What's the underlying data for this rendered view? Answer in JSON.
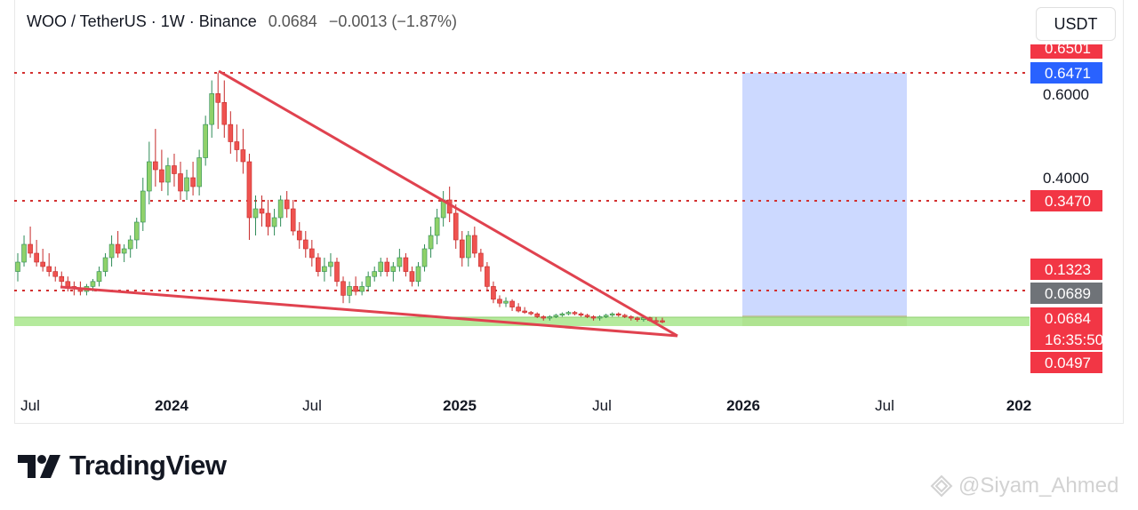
{
  "header": {
    "symbol": "WOO / TetherUS · 1W · Binance",
    "price": "0.0684",
    "change": "−0.0013 (−1.87%)"
  },
  "currency_button": "USDT",
  "brand": {
    "name": "TradingView",
    "logo_icon": "tradingview-logo-icon"
  },
  "watermark": {
    "text": "@Siyam_Ahmed",
    "icon": "tiktok-style-icon"
  },
  "colors": {
    "up": "#26a69a",
    "up_fill": "#8fd16a",
    "down": "#ef5350",
    "trendline": "#e0424f",
    "dotted": "#d32f2f",
    "zone": "#ccd9ff",
    "support_band": "#a8e68c",
    "label_red": "#f23645",
    "label_blue": "#2962ff",
    "label_gray": "#6f7378"
  },
  "chart_data": {
    "type": "candlestick",
    "interval": "1W",
    "y_axis_ticks": [
      "0.6000",
      "0.4000"
    ],
    "x_axis_ticks": [
      "Jul",
      "2024",
      "Jul",
      "2025",
      "Jul",
      "2026",
      "Jul",
      "202"
    ],
    "price_labels": [
      {
        "text": "0.6501",
        "kind": "red",
        "value": 0.6501
      },
      {
        "text": "0.6471",
        "kind": "blue",
        "value": 0.6471
      },
      {
        "text": "0.3470",
        "kind": "red",
        "value": 0.347
      },
      {
        "text": "0.1323",
        "kind": "red",
        "value": 0.1323
      },
      {
        "text": "0.0689",
        "kind": "gray",
        "value": 0.0689
      },
      {
        "text": "0.0684",
        "kind": "red",
        "value": 0.0684
      },
      {
        "text": "16:35:50",
        "kind": "red",
        "value": 0.0684
      },
      {
        "text": "0.0497",
        "kind": "red",
        "value": 0.0497
      }
    ],
    "horizontal_levels": [
      0.6471,
      0.347,
      0.1323
    ],
    "support_band": [
      0.062,
      0.072
    ],
    "projection_zone": {
      "x_start": "2026-03",
      "x_end": "2026-08",
      "y_low": 0.068,
      "y_high": 0.6471
    },
    "trendlines": [
      {
        "from": {
          "x": "2024-03",
          "y": 0.6471
        },
        "to": {
          "x": "2025-10",
          "y": 0.0497
        }
      },
      {
        "from": {
          "x": "2023-09",
          "y": 0.1323
        },
        "to": {
          "x": "2025-10",
          "y": 0.0497
        }
      }
    ],
    "candles": [
      {
        "o": 0.19,
        "h": 0.23,
        "l": 0.17,
        "c": 0.21
      },
      {
        "o": 0.21,
        "h": 0.27,
        "l": 0.2,
        "c": 0.25
      },
      {
        "o": 0.25,
        "h": 0.29,
        "l": 0.22,
        "c": 0.23
      },
      {
        "o": 0.23,
        "h": 0.26,
        "l": 0.2,
        "c": 0.21
      },
      {
        "o": 0.21,
        "h": 0.24,
        "l": 0.19,
        "c": 0.2
      },
      {
        "o": 0.2,
        "h": 0.23,
        "l": 0.18,
        "c": 0.19
      },
      {
        "o": 0.19,
        "h": 0.2,
        "l": 0.17,
        "c": 0.18
      },
      {
        "o": 0.18,
        "h": 0.19,
        "l": 0.16,
        "c": 0.17
      },
      {
        "o": 0.17,
        "h": 0.18,
        "l": 0.15,
        "c": 0.16
      },
      {
        "o": 0.16,
        "h": 0.17,
        "l": 0.14,
        "c": 0.155
      },
      {
        "o": 0.155,
        "h": 0.17,
        "l": 0.14,
        "c": 0.15
      },
      {
        "o": 0.15,
        "h": 0.165,
        "l": 0.14,
        "c": 0.16
      },
      {
        "o": 0.16,
        "h": 0.175,
        "l": 0.15,
        "c": 0.17
      },
      {
        "o": 0.17,
        "h": 0.2,
        "l": 0.16,
        "c": 0.19
      },
      {
        "o": 0.19,
        "h": 0.23,
        "l": 0.18,
        "c": 0.22
      },
      {
        "o": 0.22,
        "h": 0.27,
        "l": 0.2,
        "c": 0.25
      },
      {
        "o": 0.25,
        "h": 0.28,
        "l": 0.22,
        "c": 0.23
      },
      {
        "o": 0.23,
        "h": 0.25,
        "l": 0.21,
        "c": 0.24
      },
      {
        "o": 0.24,
        "h": 0.27,
        "l": 0.22,
        "c": 0.26
      },
      {
        "o": 0.26,
        "h": 0.31,
        "l": 0.24,
        "c": 0.3
      },
      {
        "o": 0.3,
        "h": 0.4,
        "l": 0.28,
        "c": 0.37
      },
      {
        "o": 0.37,
        "h": 0.49,
        "l": 0.34,
        "c": 0.44
      },
      {
        "o": 0.44,
        "h": 0.52,
        "l": 0.38,
        "c": 0.42
      },
      {
        "o": 0.42,
        "h": 0.47,
        "l": 0.37,
        "c": 0.39
      },
      {
        "o": 0.39,
        "h": 0.45,
        "l": 0.36,
        "c": 0.43
      },
      {
        "o": 0.43,
        "h": 0.46,
        "l": 0.38,
        "c": 0.41
      },
      {
        "o": 0.41,
        "h": 0.44,
        "l": 0.35,
        "c": 0.37
      },
      {
        "o": 0.37,
        "h": 0.42,
        "l": 0.35,
        "c": 0.4
      },
      {
        "o": 0.4,
        "h": 0.44,
        "l": 0.36,
        "c": 0.38
      },
      {
        "o": 0.38,
        "h": 0.47,
        "l": 0.36,
        "c": 0.45
      },
      {
        "o": 0.45,
        "h": 0.55,
        "l": 0.43,
        "c": 0.53
      },
      {
        "o": 0.53,
        "h": 0.63,
        "l": 0.5,
        "c": 0.6
      },
      {
        "o": 0.6,
        "h": 0.6471,
        "l": 0.52,
        "c": 0.58
      },
      {
        "o": 0.58,
        "h": 0.63,
        "l": 0.5,
        "c": 0.53
      },
      {
        "o": 0.53,
        "h": 0.56,
        "l": 0.46,
        "c": 0.49
      },
      {
        "o": 0.49,
        "h": 0.53,
        "l": 0.44,
        "c": 0.47
      },
      {
        "o": 0.47,
        "h": 0.52,
        "l": 0.41,
        "c": 0.44
      },
      {
        "o": 0.44,
        "h": 0.46,
        "l": 0.26,
        "c": 0.31
      },
      {
        "o": 0.31,
        "h": 0.36,
        "l": 0.27,
        "c": 0.33
      },
      {
        "o": 0.33,
        "h": 0.36,
        "l": 0.29,
        "c": 0.32
      },
      {
        "o": 0.32,
        "h": 0.35,
        "l": 0.27,
        "c": 0.29
      },
      {
        "o": 0.29,
        "h": 0.33,
        "l": 0.27,
        "c": 0.31
      },
      {
        "o": 0.31,
        "h": 0.36,
        "l": 0.29,
        "c": 0.35
      },
      {
        "o": 0.35,
        "h": 0.37,
        "l": 0.31,
        "c": 0.33
      },
      {
        "o": 0.33,
        "h": 0.35,
        "l": 0.27,
        "c": 0.28
      },
      {
        "o": 0.28,
        "h": 0.3,
        "l": 0.24,
        "c": 0.26
      },
      {
        "o": 0.26,
        "h": 0.28,
        "l": 0.22,
        "c": 0.24
      },
      {
        "o": 0.24,
        "h": 0.26,
        "l": 0.2,
        "c": 0.22
      },
      {
        "o": 0.22,
        "h": 0.23,
        "l": 0.18,
        "c": 0.19
      },
      {
        "o": 0.19,
        "h": 0.22,
        "l": 0.17,
        "c": 0.2
      },
      {
        "o": 0.2,
        "h": 0.23,
        "l": 0.18,
        "c": 0.21
      },
      {
        "o": 0.21,
        "h": 0.22,
        "l": 0.16,
        "c": 0.17
      },
      {
        "o": 0.17,
        "h": 0.18,
        "l": 0.12,
        "c": 0.14
      },
      {
        "o": 0.14,
        "h": 0.17,
        "l": 0.12,
        "c": 0.16
      },
      {
        "o": 0.16,
        "h": 0.18,
        "l": 0.14,
        "c": 0.15
      },
      {
        "o": 0.15,
        "h": 0.17,
        "l": 0.14,
        "c": 0.16
      },
      {
        "o": 0.16,
        "h": 0.19,
        "l": 0.15,
        "c": 0.18
      },
      {
        "o": 0.18,
        "h": 0.2,
        "l": 0.17,
        "c": 0.19
      },
      {
        "o": 0.19,
        "h": 0.22,
        "l": 0.18,
        "c": 0.21
      },
      {
        "o": 0.21,
        "h": 0.22,
        "l": 0.18,
        "c": 0.19
      },
      {
        "o": 0.19,
        "h": 0.21,
        "l": 0.17,
        "c": 0.2
      },
      {
        "o": 0.2,
        "h": 0.24,
        "l": 0.19,
        "c": 0.22
      },
      {
        "o": 0.22,
        "h": 0.23,
        "l": 0.18,
        "c": 0.19
      },
      {
        "o": 0.19,
        "h": 0.2,
        "l": 0.16,
        "c": 0.17
      },
      {
        "o": 0.17,
        "h": 0.21,
        "l": 0.16,
        "c": 0.2
      },
      {
        "o": 0.2,
        "h": 0.25,
        "l": 0.19,
        "c": 0.24
      },
      {
        "o": 0.24,
        "h": 0.29,
        "l": 0.22,
        "c": 0.27
      },
      {
        "o": 0.27,
        "h": 0.33,
        "l": 0.25,
        "c": 0.31
      },
      {
        "o": 0.31,
        "h": 0.37,
        "l": 0.29,
        "c": 0.35
      },
      {
        "o": 0.35,
        "h": 0.38,
        "l": 0.3,
        "c": 0.32
      },
      {
        "o": 0.32,
        "h": 0.34,
        "l": 0.24,
        "c": 0.26
      },
      {
        "o": 0.26,
        "h": 0.28,
        "l": 0.2,
        "c": 0.22
      },
      {
        "o": 0.22,
        "h": 0.28,
        "l": 0.2,
        "c": 0.27
      },
      {
        "o": 0.27,
        "h": 0.29,
        "l": 0.22,
        "c": 0.23
      },
      {
        "o": 0.23,
        "h": 0.24,
        "l": 0.19,
        "c": 0.2
      },
      {
        "o": 0.2,
        "h": 0.21,
        "l": 0.15,
        "c": 0.16
      },
      {
        "o": 0.16,
        "h": 0.17,
        "l": 0.12,
        "c": 0.13
      },
      {
        "o": 0.13,
        "h": 0.14,
        "l": 0.11,
        "c": 0.12
      },
      {
        "o": 0.12,
        "h": 0.135,
        "l": 0.11,
        "c": 0.125
      },
      {
        "o": 0.125,
        "h": 0.13,
        "l": 0.1,
        "c": 0.11
      },
      {
        "o": 0.11,
        "h": 0.12,
        "l": 0.095,
        "c": 0.1
      },
      {
        "o": 0.1,
        "h": 0.11,
        "l": 0.09,
        "c": 0.095
      },
      {
        "o": 0.095,
        "h": 0.1,
        "l": 0.085,
        "c": 0.09
      },
      {
        "o": 0.09,
        "h": 0.095,
        "l": 0.075,
        "c": 0.08
      },
      {
        "o": 0.08,
        "h": 0.085,
        "l": 0.07,
        "c": 0.075
      },
      {
        "o": 0.075,
        "h": 0.085,
        "l": 0.07,
        "c": 0.08
      },
      {
        "o": 0.08,
        "h": 0.09,
        "l": 0.075,
        "c": 0.085
      },
      {
        "o": 0.085,
        "h": 0.095,
        "l": 0.08,
        "c": 0.09
      },
      {
        "o": 0.09,
        "h": 0.1,
        "l": 0.085,
        "c": 0.095
      },
      {
        "o": 0.095,
        "h": 0.1,
        "l": 0.085,
        "c": 0.09
      },
      {
        "o": 0.09,
        "h": 0.095,
        "l": 0.08,
        "c": 0.085
      },
      {
        "o": 0.085,
        "h": 0.09,
        "l": 0.075,
        "c": 0.08
      },
      {
        "o": 0.08,
        "h": 0.085,
        "l": 0.07,
        "c": 0.075
      },
      {
        "o": 0.075,
        "h": 0.085,
        "l": 0.07,
        "c": 0.08
      },
      {
        "o": 0.08,
        "h": 0.09,
        "l": 0.075,
        "c": 0.085
      },
      {
        "o": 0.085,
        "h": 0.095,
        "l": 0.08,
        "c": 0.09
      },
      {
        "o": 0.09,
        "h": 0.095,
        "l": 0.08,
        "c": 0.085
      },
      {
        "o": 0.085,
        "h": 0.09,
        "l": 0.075,
        "c": 0.08
      },
      {
        "o": 0.08,
        "h": 0.085,
        "l": 0.07,
        "c": 0.075
      },
      {
        "o": 0.075,
        "h": 0.08,
        "l": 0.068,
        "c": 0.072
      },
      {
        "o": 0.072,
        "h": 0.08,
        "l": 0.068,
        "c": 0.076
      },
      {
        "o": 0.076,
        "h": 0.08,
        "l": 0.068,
        "c": 0.07
      },
      {
        "o": 0.07,
        "h": 0.078,
        "l": 0.066,
        "c": 0.0697
      },
      {
        "o": 0.0697,
        "h": 0.076,
        "l": 0.065,
        "c": 0.0684
      }
    ]
  }
}
